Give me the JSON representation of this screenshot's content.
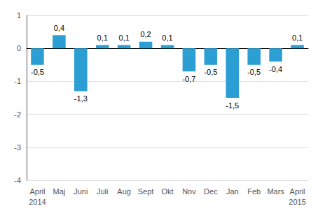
{
  "chart_data": {
    "type": "bar",
    "categories": [
      "April",
      "Maj",
      "Juni",
      "Juli",
      "Aug",
      "Sept",
      "Okt",
      "Nov",
      "Dec",
      "Jan",
      "Feb",
      "Mars",
      "April"
    ],
    "values": [
      -0.5,
      0.4,
      -1.3,
      0.1,
      0.1,
      0.2,
      0.1,
      -0.7,
      -0.5,
      -1.5,
      -0.5,
      -0.4,
      0.1
    ],
    "value_labels": [
      "-0,5",
      "0,4",
      "-1,3",
      "0,1",
      "0,1",
      "0,2",
      "0,1",
      "-0,7",
      "-0,5",
      "-1,5",
      "-0,5",
      "-0,4",
      "0,1"
    ],
    "data_labels": true,
    "color": "#2b9fd4",
    "ylim": [
      -4,
      1
    ],
    "yticks": [
      -4,
      -3,
      -2,
      -1,
      0,
      1
    ],
    "grid": true,
    "annotations": [
      {
        "text": "2014",
        "index": 0
      },
      {
        "text": "2015",
        "index": 12
      }
    ]
  }
}
